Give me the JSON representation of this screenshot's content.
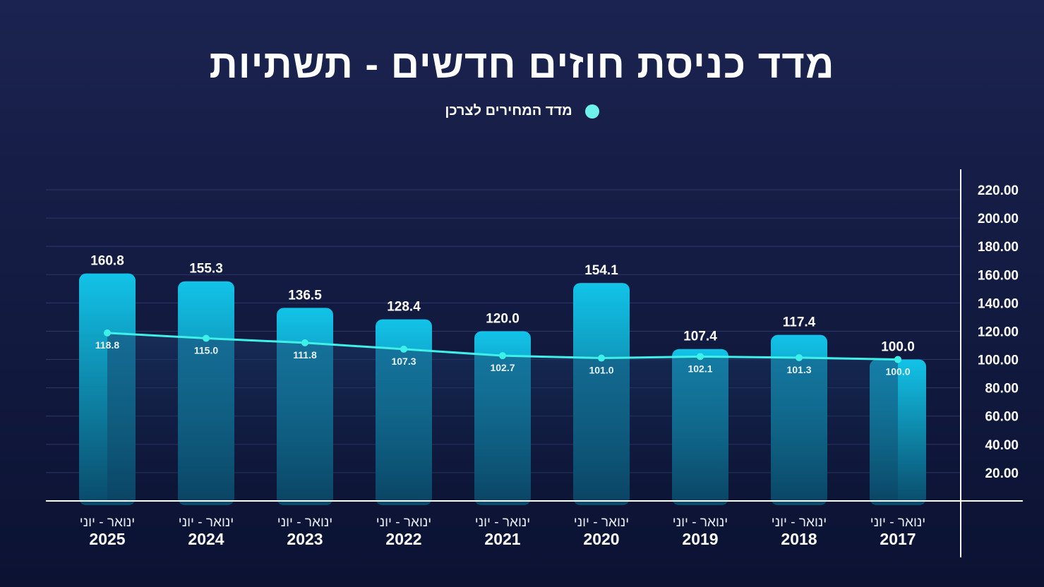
{
  "title": "מדד כניסת חוזים חדשים - תשתיות",
  "chart_data": {
    "type": "bar",
    "title": "מדד כניסת חוזים חדשים - תשתיות",
    "categories": [
      "2025",
      "2024",
      "2023",
      "2022",
      "2021",
      "2020",
      "2019",
      "2018",
      "2017"
    ],
    "category_sublabel": "ינואר - יוני",
    "series": [
      {
        "type": "bar",
        "values": [
          160.8,
          155.3,
          136.5,
          128.4,
          120.0,
          154.1,
          107.4,
          117.4,
          100.0
        ],
        "labels": [
          "160.8",
          "155.3",
          "136.5",
          "128.4",
          "120.0",
          "154.1",
          "107.4",
          "117.4",
          "100.0"
        ]
      },
      {
        "name": "מדד המחירים לצרכן",
        "type": "line",
        "values": [
          118.8,
          115.0,
          111.8,
          107.3,
          102.7,
          101.0,
          102.1,
          101.3,
          100.0
        ],
        "labels": [
          "118.8",
          "115.0",
          "111.8",
          "107.3",
          "102.7",
          "101.0",
          "102.1",
          "101.3",
          "100.0"
        ]
      }
    ],
    "ylim": [
      0,
      220
    ],
    "yticks": [
      "20.00",
      "40.00",
      "60.00",
      "80.00",
      "100.00",
      "120.00",
      "140.00",
      "160.00",
      "180.00",
      "200.00",
      "220.00"
    ],
    "yaxis_position": "right",
    "grid": true,
    "legend_position": "top-center",
    "colors": {
      "bar_top": "#12c3e8",
      "bar_bottom": "#0a4a6a",
      "line": "#3ff0e8",
      "legend_dot": "#6ef3ea",
      "grid": "#2c3868"
    }
  }
}
